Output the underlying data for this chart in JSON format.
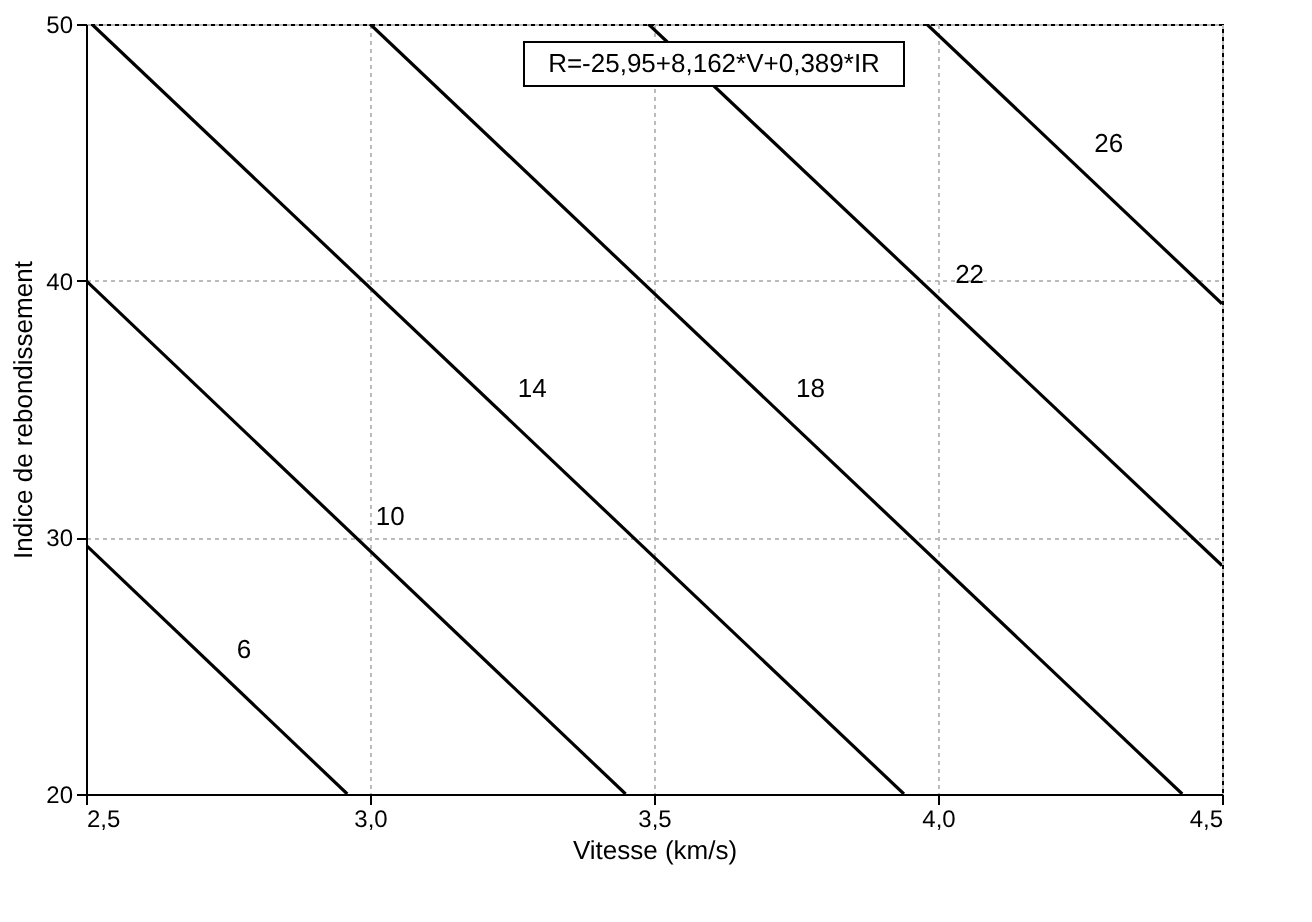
{
  "chart_data": {
    "type": "line",
    "xlabel": "Vitesse (km/s)",
    "ylabel": "Indice de rebondissement",
    "annotations": [
      "R=-25,95+8,162*V+0,389*IR"
    ],
    "xlim": [
      2.5,
      4.5
    ],
    "ylim": [
      20,
      50
    ],
    "xticks": [
      {
        "value": 2.5,
        "label": "2,5"
      },
      {
        "value": 3.0,
        "label": "3,0"
      },
      {
        "value": 3.5,
        "label": "3,5"
      },
      {
        "value": 4.0,
        "label": "4,0"
      },
      {
        "value": 4.5,
        "label": "4,5"
      }
    ],
    "yticks": [
      20,
      30,
      40,
      50
    ],
    "grid": true,
    "marker": "none",
    "line_style": "solid",
    "series": [
      {
        "name": "6",
        "color": "#000000",
        "x": [
          2.5,
          2.96
        ],
        "values": [
          29.7,
          20
        ]
      },
      {
        "name": "10",
        "color": "#000000",
        "x": [
          2.5,
          3.45
        ],
        "values": [
          40,
          20
        ]
      },
      {
        "name": "14",
        "color": "#000000",
        "x": [
          2.51,
          3.94
        ],
        "values": [
          50,
          20
        ]
      },
      {
        "name": "18",
        "color": "#000000",
        "x": [
          3.0,
          4.43
        ],
        "values": [
          50,
          20
        ]
      },
      {
        "name": "22",
        "color": "#000000",
        "x": [
          3.49,
          4.5
        ],
        "values": [
          50,
          28.9
        ]
      },
      {
        "name": "26",
        "color": "#000000",
        "x": [
          3.98,
          4.5
        ],
        "values": [
          50,
          39.1
        ]
      }
    ]
  }
}
